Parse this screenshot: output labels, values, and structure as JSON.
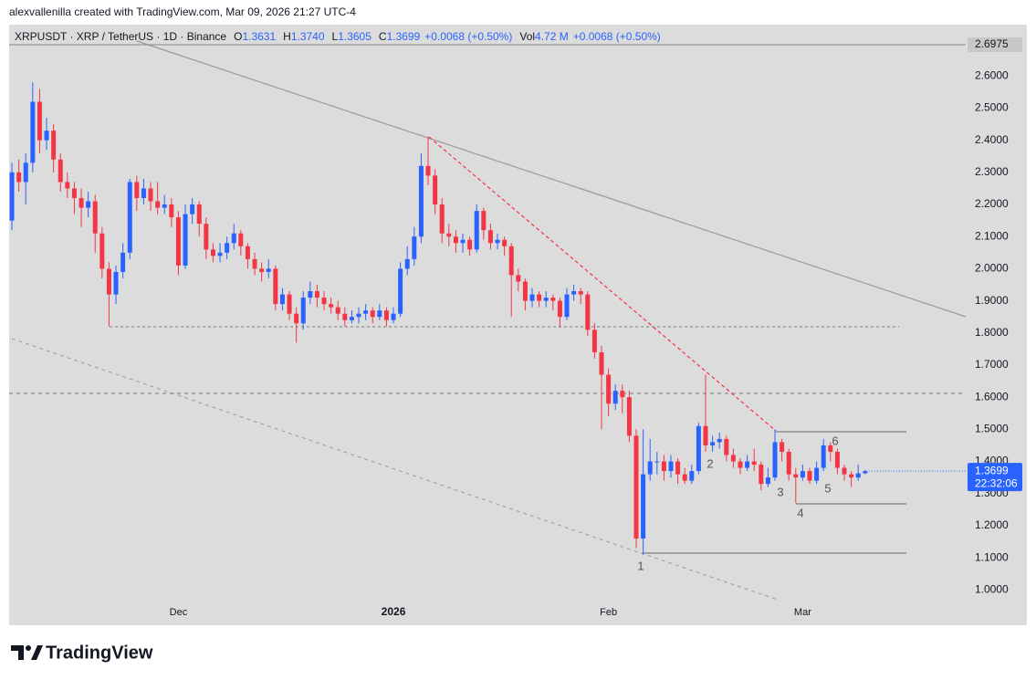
{
  "chart_data": {
    "type": "candlestick",
    "credit": "alexvallenilla created with TradingView.com, Mar 09, 2026 21:27 UTC-4",
    "legend": {
      "symbol": "XRPUSDT · XRP / TetherUS · 1D · Binance",
      "fields": [
        {
          "label": "O",
          "value": "1.3631"
        },
        {
          "label": "H",
          "value": "1.3740"
        },
        {
          "label": "L",
          "value": "1.3605"
        },
        {
          "label": "C",
          "value": "1.3699"
        }
      ],
      "change": "+0.0068 (+0.50%)",
      "volume_label": "Vol",
      "volume": "4.72 M",
      "volume_change": "+0.0068 (+0.50%)"
    },
    "up_color": "#2962ff",
    "down_color": "#f23645",
    "ohlc": [
      [
        2.15,
        2.33,
        2.12,
        2.3
      ],
      [
        2.3,
        2.34,
        2.24,
        2.27
      ],
      [
        2.27,
        2.36,
        2.2,
        2.33
      ],
      [
        2.33,
        2.58,
        2.3,
        2.52
      ],
      [
        2.52,
        2.56,
        2.36,
        2.4
      ],
      [
        2.4,
        2.47,
        2.37,
        2.43
      ],
      [
        2.43,
        2.45,
        2.3,
        2.34
      ],
      [
        2.34,
        2.36,
        2.24,
        2.27
      ],
      [
        2.27,
        2.3,
        2.22,
        2.25
      ],
      [
        2.25,
        2.27,
        2.17,
        2.22
      ],
      [
        2.22,
        2.25,
        2.13,
        2.19
      ],
      [
        2.19,
        2.24,
        2.16,
        2.21
      ],
      [
        2.21,
        2.23,
        2.05,
        2.11
      ],
      [
        2.11,
        2.13,
        1.97,
        2.0
      ],
      [
        2.0,
        2.02,
        1.82,
        1.92
      ],
      [
        1.92,
        2.01,
        1.89,
        1.99
      ],
      [
        1.99,
        2.08,
        1.97,
        2.05
      ],
      [
        2.05,
        2.28,
        2.03,
        2.27
      ],
      [
        2.27,
        2.29,
        2.18,
        2.22
      ],
      [
        2.22,
        2.28,
        2.2,
        2.25
      ],
      [
        2.25,
        2.27,
        2.18,
        2.21
      ],
      [
        2.21,
        2.27,
        2.17,
        2.19
      ],
      [
        2.19,
        2.23,
        2.17,
        2.2
      ],
      [
        2.2,
        2.22,
        2.13,
        2.16
      ],
      [
        2.16,
        2.18,
        1.98,
        2.01
      ],
      [
        2.01,
        2.2,
        2.0,
        2.17
      ],
      [
        2.17,
        2.22,
        2.14,
        2.2
      ],
      [
        2.2,
        2.21,
        2.1,
        2.14
      ],
      [
        2.14,
        2.16,
        2.03,
        2.06
      ],
      [
        2.06,
        2.08,
        2.02,
        2.04
      ],
      [
        2.04,
        2.08,
        2.02,
        2.05
      ],
      [
        2.05,
        2.1,
        2.03,
        2.08
      ],
      [
        2.08,
        2.14,
        2.06,
        2.11
      ],
      [
        2.11,
        2.12,
        2.04,
        2.07
      ],
      [
        2.07,
        2.08,
        2.0,
        2.03
      ],
      [
        2.03,
        2.05,
        1.98,
        2.0
      ],
      [
        2.0,
        2.02,
        1.96,
        1.99
      ],
      [
        1.99,
        2.03,
        1.97,
        2.0
      ],
      [
        2.0,
        2.01,
        1.87,
        1.89
      ],
      [
        1.89,
        1.94,
        1.87,
        1.92
      ],
      [
        1.92,
        1.93,
        1.84,
        1.86
      ],
      [
        1.86,
        1.88,
        1.77,
        1.83
      ],
      [
        1.83,
        1.93,
        1.81,
        1.91
      ],
      [
        1.91,
        1.96,
        1.89,
        1.93
      ],
      [
        1.93,
        1.95,
        1.88,
        1.91
      ],
      [
        1.91,
        1.93,
        1.87,
        1.89
      ],
      [
        1.89,
        1.91,
        1.86,
        1.88
      ],
      [
        1.88,
        1.9,
        1.84,
        1.86
      ],
      [
        1.86,
        1.88,
        1.82,
        1.84
      ],
      [
        1.84,
        1.87,
        1.83,
        1.85
      ],
      [
        1.85,
        1.88,
        1.83,
        1.86
      ],
      [
        1.86,
        1.89,
        1.84,
        1.87
      ],
      [
        1.87,
        1.88,
        1.83,
        1.85
      ],
      [
        1.85,
        1.89,
        1.84,
        1.87
      ],
      [
        1.87,
        1.88,
        1.82,
        1.84
      ],
      [
        1.84,
        1.88,
        1.83,
        1.86
      ],
      [
        1.86,
        2.02,
        1.85,
        2.0
      ],
      [
        2.0,
        2.07,
        1.98,
        2.03
      ],
      [
        2.03,
        2.13,
        2.01,
        2.1
      ],
      [
        2.1,
        2.36,
        2.08,
        2.32
      ],
      [
        2.32,
        2.41,
        2.26,
        2.29
      ],
      [
        2.29,
        2.31,
        2.17,
        2.2
      ],
      [
        2.2,
        2.22,
        2.08,
        2.11
      ],
      [
        2.11,
        2.14,
        2.07,
        2.1
      ],
      [
        2.1,
        2.12,
        2.05,
        2.08
      ],
      [
        2.08,
        2.11,
        2.05,
        2.09
      ],
      [
        2.09,
        2.1,
        2.04,
        2.06
      ],
      [
        2.06,
        2.2,
        2.05,
        2.18
      ],
      [
        2.18,
        2.19,
        2.09,
        2.12
      ],
      [
        2.12,
        2.14,
        2.06,
        2.08
      ],
      [
        2.08,
        2.11,
        2.06,
        2.09
      ],
      [
        2.09,
        2.1,
        2.04,
        2.07
      ],
      [
        2.07,
        2.08,
        1.85,
        1.98
      ],
      [
        1.98,
        2.0,
        1.93,
        1.96
      ],
      [
        1.96,
        1.97,
        1.87,
        1.9
      ],
      [
        1.9,
        1.94,
        1.88,
        1.92
      ],
      [
        1.92,
        1.93,
        1.88,
        1.9
      ],
      [
        1.9,
        1.93,
        1.88,
        1.91
      ],
      [
        1.91,
        1.92,
        1.87,
        1.9
      ],
      [
        1.9,
        1.91,
        1.82,
        1.85
      ],
      [
        1.85,
        1.94,
        1.84,
        1.92
      ],
      [
        1.92,
        1.95,
        1.9,
        1.93
      ],
      [
        1.93,
        1.94,
        1.89,
        1.92
      ],
      [
        1.92,
        1.93,
        1.79,
        1.81
      ],
      [
        1.81,
        1.83,
        1.72,
        1.74
      ],
      [
        1.74,
        1.76,
        1.5,
        1.67
      ],
      [
        1.67,
        1.69,
        1.54,
        1.58
      ],
      [
        1.58,
        1.64,
        1.56,
        1.62
      ],
      [
        1.62,
        1.64,
        1.55,
        1.6
      ],
      [
        1.6,
        1.62,
        1.46,
        1.48
      ],
      [
        1.48,
        1.5,
        1.13,
        1.16
      ],
      [
        1.16,
        1.5,
        1.11,
        1.36
      ],
      [
        1.36,
        1.47,
        1.34,
        1.4
      ],
      [
        1.4,
        1.43,
        1.36,
        1.4
      ],
      [
        1.4,
        1.42,
        1.34,
        1.37
      ],
      [
        1.37,
        1.42,
        1.35,
        1.4
      ],
      [
        1.4,
        1.41,
        1.33,
        1.36
      ],
      [
        1.36,
        1.38,
        1.33,
        1.34
      ],
      [
        1.34,
        1.39,
        1.33,
        1.37
      ],
      [
        1.37,
        1.52,
        1.36,
        1.51
      ],
      [
        1.51,
        1.67,
        1.43,
        1.45
      ],
      [
        1.45,
        1.48,
        1.43,
        1.46
      ],
      [
        1.46,
        1.49,
        1.44,
        1.47
      ],
      [
        1.47,
        1.48,
        1.4,
        1.42
      ],
      [
        1.42,
        1.44,
        1.38,
        1.4
      ],
      [
        1.4,
        1.41,
        1.36,
        1.38
      ],
      [
        1.38,
        1.42,
        1.37,
        1.4
      ],
      [
        1.4,
        1.44,
        1.37,
        1.39
      ],
      [
        1.39,
        1.4,
        1.31,
        1.33
      ],
      [
        1.33,
        1.38,
        1.32,
        1.35
      ],
      [
        1.35,
        1.5,
        1.34,
        1.46
      ],
      [
        1.46,
        1.47,
        1.4,
        1.43
      ],
      [
        1.43,
        1.44,
        1.34,
        1.36
      ],
      [
        1.36,
        1.38,
        1.27,
        1.35
      ],
      [
        1.35,
        1.39,
        1.34,
        1.37
      ],
      [
        1.37,
        1.38,
        1.33,
        1.34
      ],
      [
        1.34,
        1.4,
        1.33,
        1.38
      ],
      [
        1.38,
        1.47,
        1.37,
        1.45
      ],
      [
        1.45,
        1.46,
        1.4,
        1.43
      ],
      [
        1.43,
        1.44,
        1.36,
        1.38
      ],
      [
        1.38,
        1.39,
        1.34,
        1.36
      ],
      [
        1.36,
        1.37,
        1.32,
        1.35
      ],
      [
        1.35,
        1.39,
        1.34,
        1.3631
      ],
      [
        1.3631,
        1.374,
        1.3605,
        1.3699
      ]
    ],
    "xlim": [
      -0.4,
      137.5
    ],
    "xticks": [
      {
        "value": 24,
        "label": "Dec"
      },
      {
        "value": 55,
        "label": "2026"
      },
      {
        "value": 86,
        "label": "Feb"
      },
      {
        "value": 114,
        "label": "Mar"
      }
    ],
    "ylim": [
      0.89,
      2.76
    ],
    "yticks": [
      {
        "value": 1.0,
        "label": "1.0000"
      },
      {
        "value": 1.1,
        "label": "1.1000"
      },
      {
        "value": 1.2,
        "label": "1.2000"
      },
      {
        "value": 1.3,
        "label": "1.3000"
      },
      {
        "value": 1.4,
        "label": "1.4000"
      },
      {
        "value": 1.5,
        "label": "1.5000"
      },
      {
        "value": 1.6,
        "label": "1.6000"
      },
      {
        "value": 1.7,
        "label": "1.7000"
      },
      {
        "value": 1.8,
        "label": "1.8000"
      },
      {
        "value": 1.9,
        "label": "1.9000"
      },
      {
        "value": 2.0,
        "label": "2.0000"
      },
      {
        "value": 2.1,
        "label": "2.1000"
      },
      {
        "value": 2.2,
        "label": "2.2000"
      },
      {
        "value": 2.3,
        "label": "2.3000"
      },
      {
        "value": 2.4,
        "label": "2.4000"
      },
      {
        "value": 2.5,
        "label": "2.5000"
      },
      {
        "value": 2.6,
        "label": "2.6000"
      }
    ],
    "price_line": {
      "value": 2.6975,
      "label": "2.6975"
    },
    "last_price": {
      "value": 1.3699,
      "label": "1.3699"
    },
    "countdown": "22:32:06",
    "annotations": [
      "1",
      "2",
      "3",
      "4",
      "5",
      "6"
    ],
    "brand": "TradingView"
  }
}
